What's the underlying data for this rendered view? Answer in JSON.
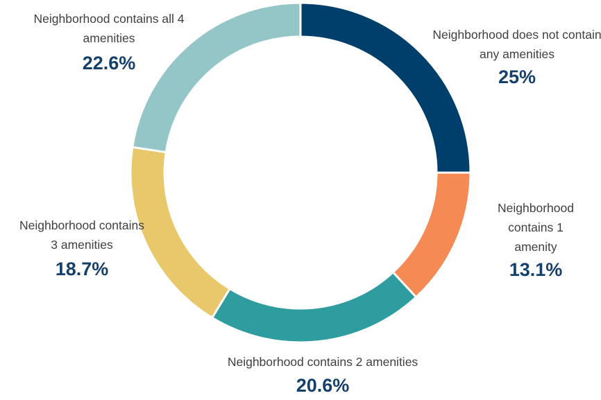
{
  "chart_data": {
    "type": "donut",
    "categories": [
      "Neighborhood does not contain any amenities",
      "Neighborhood contains 1 amenity",
      "Neighborhood contains 2 amenities",
      "Neighborhood contains 3 amenities",
      "Neighborhood contains all 4 amenities"
    ],
    "values": [
      25,
      13.1,
      20.6,
      18.7,
      22.6
    ],
    "value_labels": [
      "25%",
      "13.1%",
      "20.6%",
      "18.7%",
      "22.6%"
    ],
    "colors": [
      "#003f6b",
      "#f58a55",
      "#2f9c9f",
      "#e8c86b",
      "#95c6c7"
    ]
  }
}
